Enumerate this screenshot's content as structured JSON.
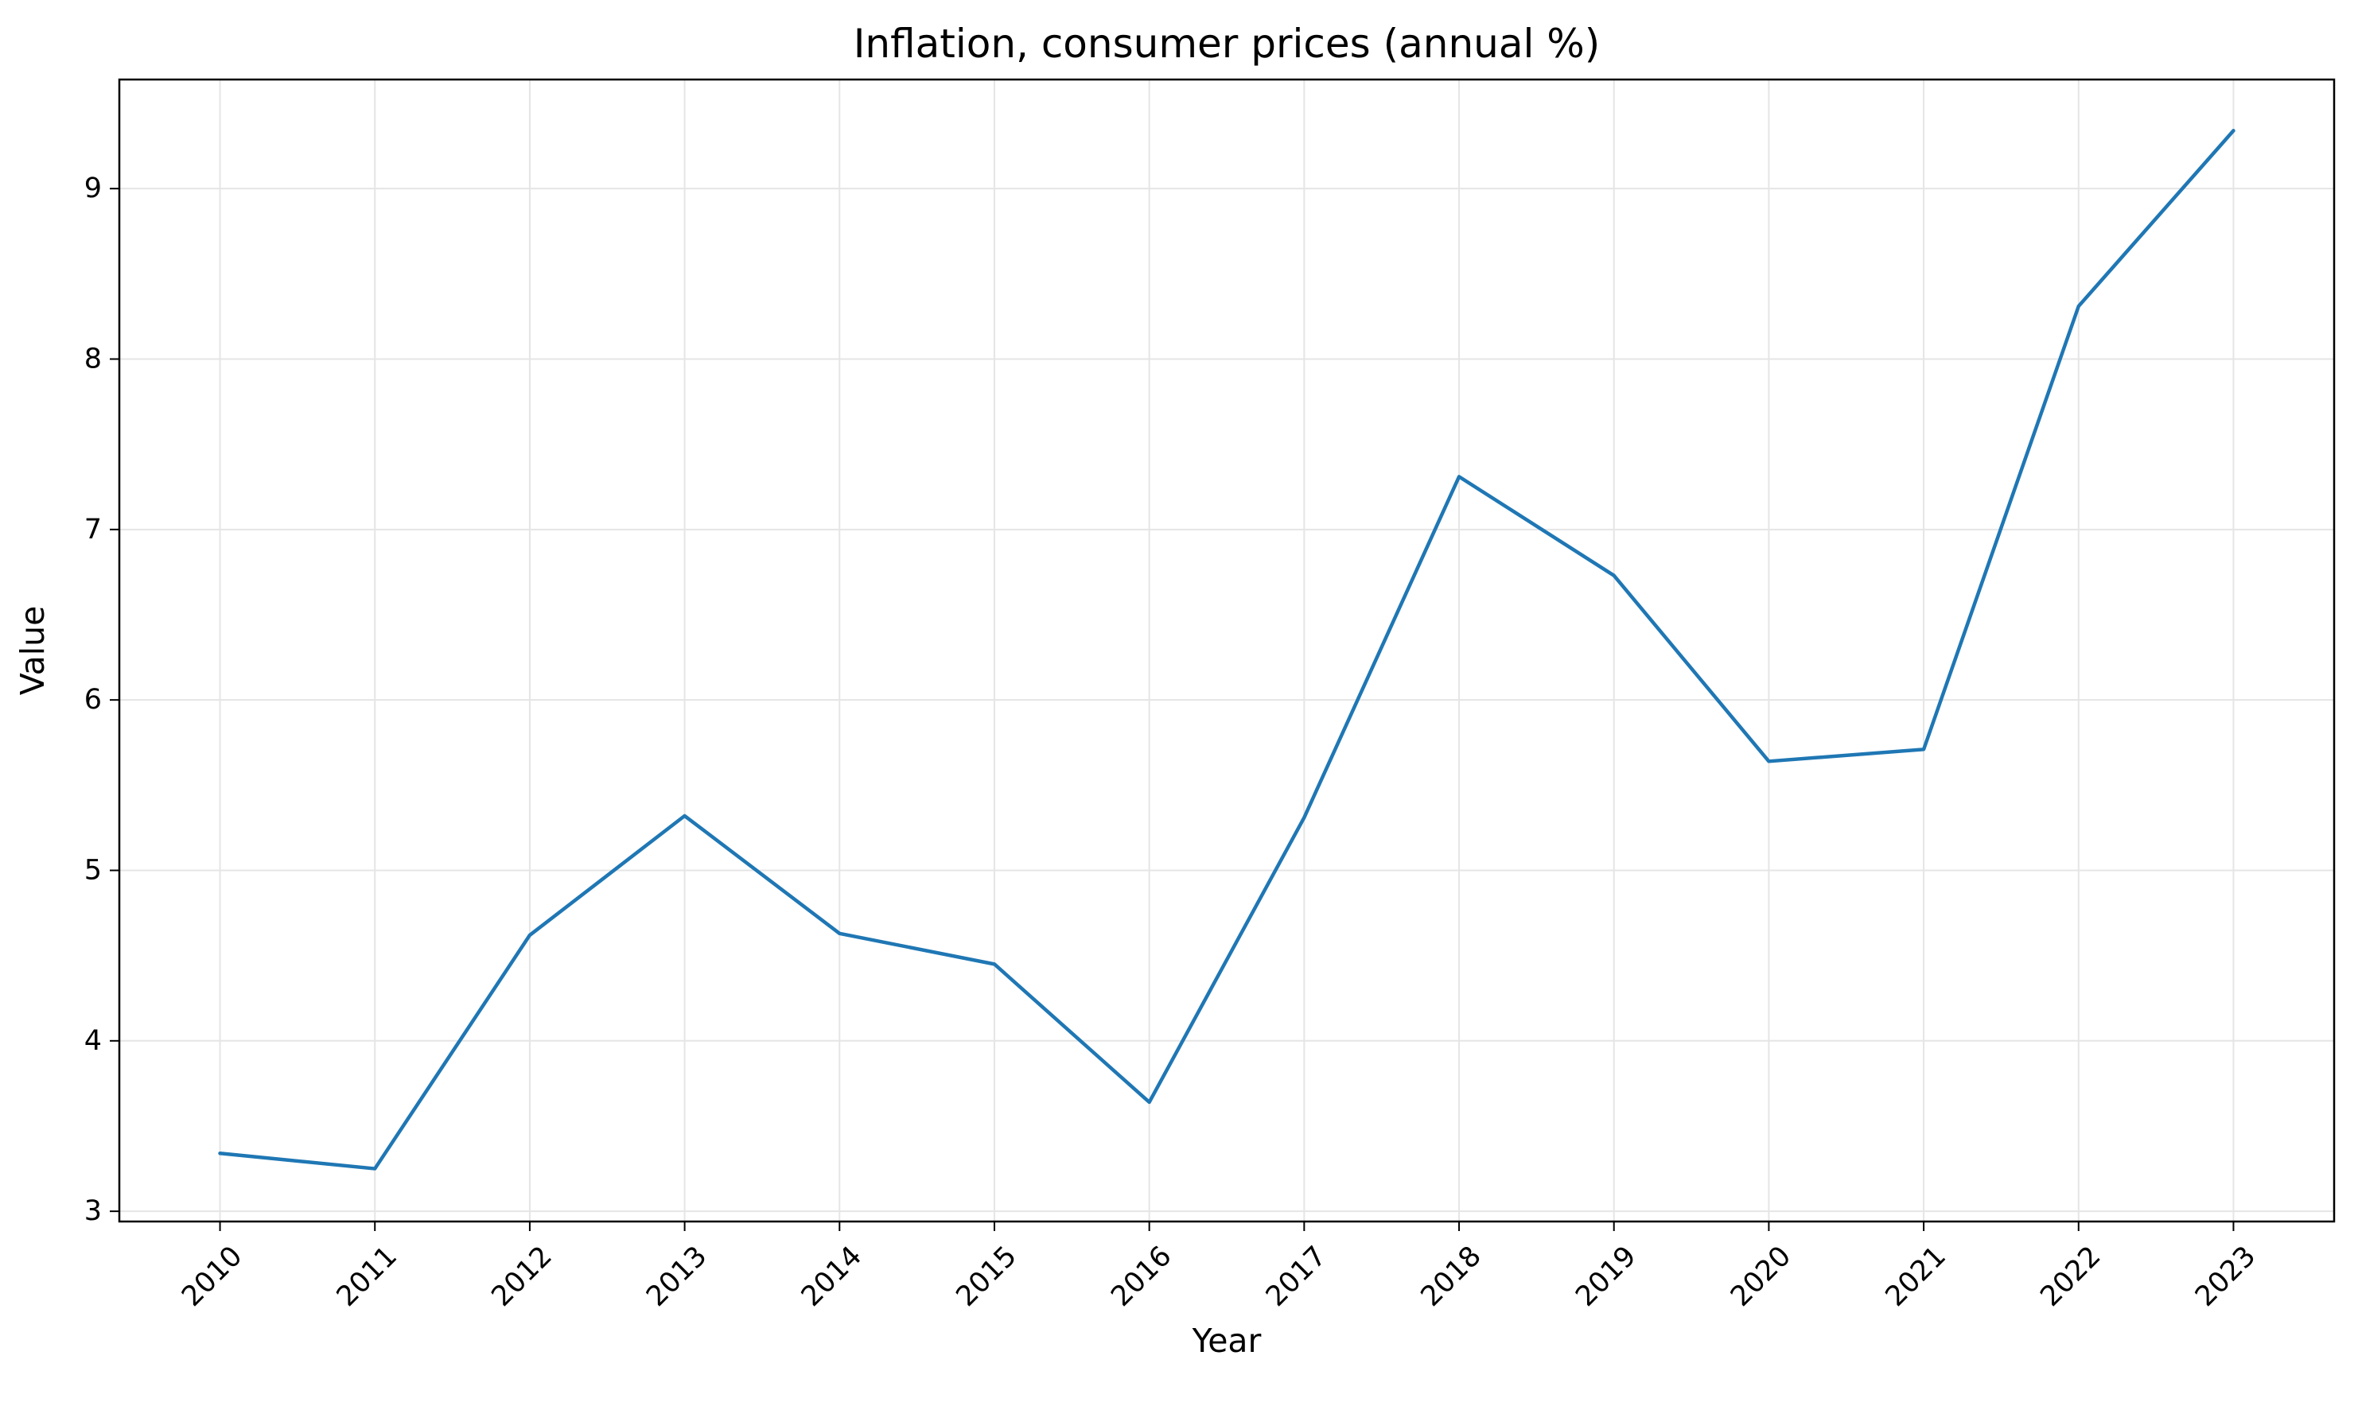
{
  "chart_data": {
    "type": "line",
    "title": "Inflation, consumer prices (annual %)",
    "xlabel": "Year",
    "ylabel": "Value",
    "x": [
      2010,
      2011,
      2012,
      2013,
      2014,
      2015,
      2016,
      2017,
      2018,
      2019,
      2020,
      2021,
      2022,
      2023
    ],
    "series": [
      {
        "values": [
          3.34,
          3.25,
          4.62,
          5.32,
          4.63,
          4.45,
          3.64,
          5.31,
          7.31,
          6.73,
          5.64,
          5.71,
          8.31,
          9.34
        ]
      }
    ],
    "xlim": [
      2009.35,
      2023.65
    ],
    "ylim": [
      2.94,
      9.64
    ],
    "y_ticks": [
      3,
      4,
      5,
      6,
      7,
      8,
      9
    ],
    "x_tick_labels": [
      "2010",
      "2011",
      "2012",
      "2013",
      "2014",
      "2015",
      "2016",
      "2017",
      "2018",
      "2019",
      "2020",
      "2021",
      "2022",
      "2023"
    ],
    "y_tick_labels": [
      "3",
      "4",
      "5",
      "6",
      "7",
      "8",
      "9"
    ],
    "grid": true,
    "line_color": "#1f77b4",
    "grid_color": "#e5e5e5"
  }
}
